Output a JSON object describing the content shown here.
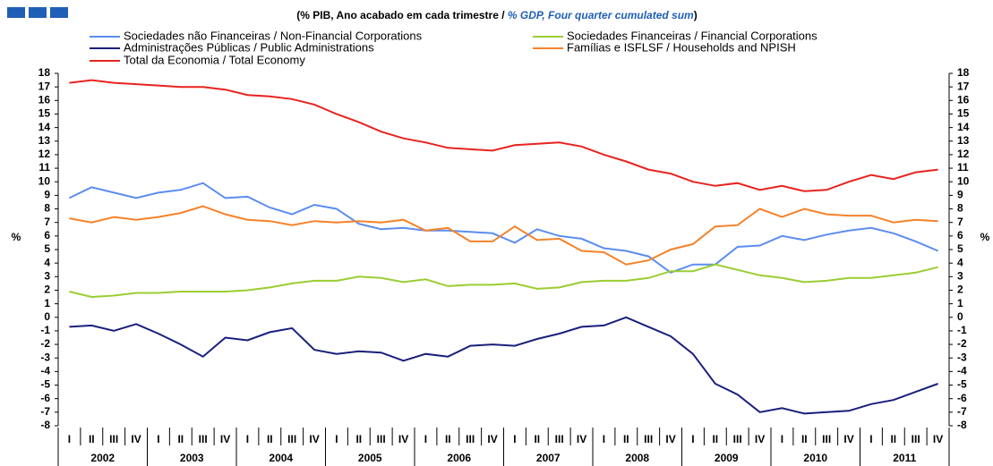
{
  "chart_data": {
    "type": "line",
    "subtitle": [
      "(% PIB, Ano acabado em cada trimestre / ",
      "% GDP, Four quarter cumulated sum",
      ")"
    ],
    "y_label": "%",
    "y2_label": "%",
    "categories": [
      "I",
      "II",
      "III",
      "IV",
      "I",
      "II",
      "III",
      "IV",
      "I",
      "II",
      "III",
      "IV",
      "I",
      "II",
      "III",
      "IV",
      "I",
      "II",
      "III",
      "IV",
      "I",
      "II",
      "III",
      "IV",
      "I",
      "II",
      "III",
      "IV",
      "I",
      "II",
      "III",
      "IV",
      "I",
      "II",
      "III",
      "IV",
      "I",
      "II",
      "III",
      "IV"
    ],
    "years": [
      "2002",
      "2003",
      "2004",
      "2005",
      "2006",
      "2007",
      "2008",
      "2009",
      "2010",
      "2011"
    ],
    "ylim": [
      -8,
      18
    ],
    "yticks": [
      18,
      17,
      16,
      15,
      14,
      13,
      12,
      11,
      10,
      9,
      8,
      7,
      6,
      5,
      4,
      3,
      2,
      1,
      0,
      -1,
      -2,
      -3,
      -4,
      -5,
      -6,
      -7,
      -8
    ],
    "series": [
      {
        "name": "Sociedades não Financeiras / Non-Financial Corporations",
        "color": "#5b8def",
        "values": [
          8.8,
          9.6,
          9.2,
          8.8,
          9.2,
          9.4,
          9.9,
          8.8,
          8.9,
          8.1,
          7.6,
          8.3,
          8.0,
          6.9,
          6.5,
          6.6,
          6.4,
          6.4,
          6.3,
          6.2,
          5.5,
          6.5,
          6.0,
          5.8,
          5.1,
          4.9,
          4.5,
          3.3,
          3.9,
          3.9,
          5.2,
          5.3,
          6.0,
          5.7,
          6.1,
          6.4,
          6.6,
          6.2,
          5.6,
          4.9
        ]
      },
      {
        "name": "Administrações Públicas / Public Administrations",
        "color": "#1a1f7a",
        "values": [
          -0.7,
          -0.6,
          -1.0,
          -0.5,
          -1.2,
          -2.0,
          -2.9,
          -1.5,
          -1.7,
          -1.1,
          -0.8,
          -2.4,
          -2.7,
          -2.5,
          -2.6,
          -3.2,
          -2.7,
          -2.9,
          -2.1,
          -2.0,
          -2.1,
          -1.6,
          -1.2,
          -0.7,
          -0.6,
          0.0,
          -0.7,
          -1.4,
          -2.7,
          -4.9,
          -5.7,
          -7.0,
          -6.7,
          -7.1,
          -7.0,
          -6.9,
          -6.4,
          -6.1,
          -5.5,
          -4.9
        ]
      },
      {
        "name": "Total da Economia / Total Economy",
        "color": "#e8231f",
        "values": [
          17.3,
          17.5,
          17.3,
          17.2,
          17.1,
          17.0,
          17.0,
          16.8,
          16.4,
          16.3,
          16.1,
          15.7,
          15.0,
          14.4,
          13.7,
          13.2,
          12.9,
          12.5,
          12.4,
          12.3,
          12.7,
          12.8,
          12.9,
          12.6,
          12.0,
          11.5,
          10.9,
          10.6,
          10.0,
          9.7,
          9.9,
          9.4,
          9.7,
          9.3,
          9.4,
          10.0,
          10.5,
          10.2,
          10.7,
          10.9
        ]
      },
      {
        "name": "Sociedades Financeiras / Financial Corporations",
        "color": "#9acd32",
        "values": [
          1.9,
          1.5,
          1.6,
          1.8,
          1.8,
          1.9,
          1.9,
          1.9,
          2.0,
          2.2,
          2.5,
          2.7,
          2.7,
          3.0,
          2.9,
          2.6,
          2.8,
          2.3,
          2.4,
          2.4,
          2.5,
          2.1,
          2.2,
          2.6,
          2.7,
          2.7,
          2.9,
          3.4,
          3.4,
          3.9,
          3.5,
          3.1,
          2.9,
          2.6,
          2.7,
          2.9,
          2.9,
          3.1,
          3.3,
          3.7
        ]
      },
      {
        "name": "Famílias e ISFLSF / Households and NPISH",
        "color": "#f5822a",
        "values": [
          7.3,
          7.0,
          7.4,
          7.2,
          7.4,
          7.7,
          8.2,
          7.6,
          7.2,
          7.1,
          6.8,
          7.1,
          7.0,
          7.1,
          7.0,
          7.2,
          6.4,
          6.6,
          5.6,
          5.6,
          6.7,
          5.7,
          5.8,
          4.9,
          4.8,
          3.9,
          4.2,
          5.0,
          5.4,
          6.7,
          6.8,
          8.0,
          7.4,
          8.0,
          7.6,
          7.5,
          7.5,
          7.0,
          7.2,
          7.1
        ]
      }
    ]
  }
}
